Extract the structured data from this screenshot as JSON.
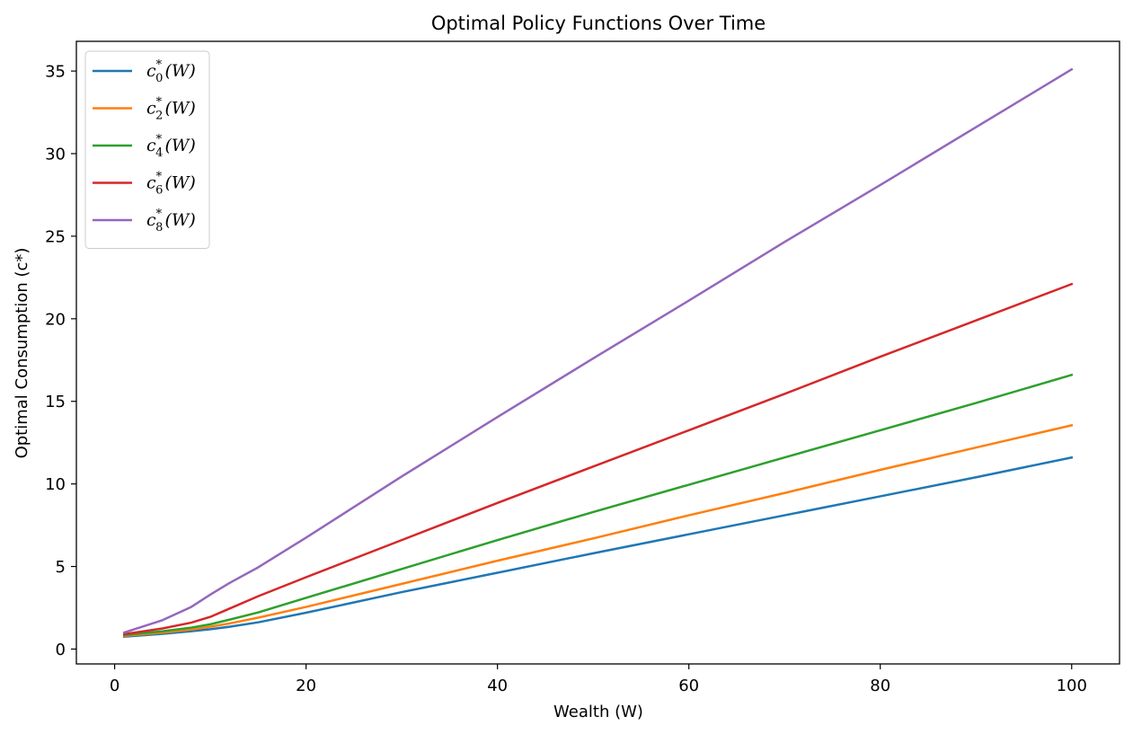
{
  "chart_data": {
    "type": "line",
    "title": "Optimal Policy Functions Over Time",
    "xlabel": "Wealth (W)",
    "ylabel": "Optimal Consumption (c*)",
    "xlim": [
      -4,
      105
    ],
    "ylim": [
      -0.9,
      36.8
    ],
    "xticks": [
      0,
      20,
      40,
      60,
      80,
      100
    ],
    "yticks": [
      0,
      5,
      10,
      15,
      20,
      25,
      30,
      35
    ],
    "grid": false,
    "legend_position": "upper left",
    "x": [
      1,
      5,
      8,
      10,
      12,
      15,
      20,
      30,
      40,
      50,
      60,
      70,
      80,
      90,
      100
    ],
    "series": [
      {
        "name": "c_0^*(W)",
        "legend": {
          "base": "c",
          "sub": "0",
          "sup": "*",
          "arg": "(W)"
        },
        "color": "#1f77b4",
        "values": [
          0.75,
          0.92,
          1.08,
          1.2,
          1.35,
          1.62,
          2.2,
          3.45,
          4.62,
          5.8,
          6.95,
          8.1,
          9.25,
          10.4,
          11.6
        ]
      },
      {
        "name": "c_2^*(W)",
        "legend": {
          "base": "c",
          "sub": "2",
          "sup": "*",
          "arg": "(W)"
        },
        "color": "#ff7f0e",
        "values": [
          0.8,
          1.0,
          1.18,
          1.35,
          1.55,
          1.9,
          2.55,
          3.95,
          5.35,
          6.7,
          8.1,
          9.45,
          10.85,
          12.2,
          13.55
        ]
      },
      {
        "name": "c_4^*(W)",
        "legend": {
          "base": "c",
          "sub": "4",
          "sup": "*",
          "arg": "(W)"
        },
        "color": "#2ca02c",
        "values": [
          0.85,
          1.08,
          1.3,
          1.5,
          1.78,
          2.22,
          3.1,
          4.85,
          6.6,
          8.3,
          9.95,
          11.6,
          13.25,
          14.9,
          16.6
        ]
      },
      {
        "name": "c_6^*(W)",
        "legend": {
          "base": "c",
          "sub": "6",
          "sup": "*",
          "arg": "(W)"
        },
        "color": "#d62728",
        "values": [
          0.9,
          1.25,
          1.6,
          1.95,
          2.45,
          3.2,
          4.35,
          6.6,
          8.85,
          11.05,
          13.25,
          15.45,
          17.7,
          19.9,
          22.1
        ]
      },
      {
        "name": "c_8^*(W)",
        "legend": {
          "base": "c",
          "sub": "8",
          "sup": "*",
          "arg": "(W)"
        },
        "color": "#9467bd",
        "values": [
          1.0,
          1.75,
          2.55,
          3.3,
          4.0,
          4.95,
          6.75,
          10.45,
          14.05,
          17.6,
          21.1,
          24.65,
          28.1,
          31.6,
          35.1
        ]
      }
    ]
  }
}
